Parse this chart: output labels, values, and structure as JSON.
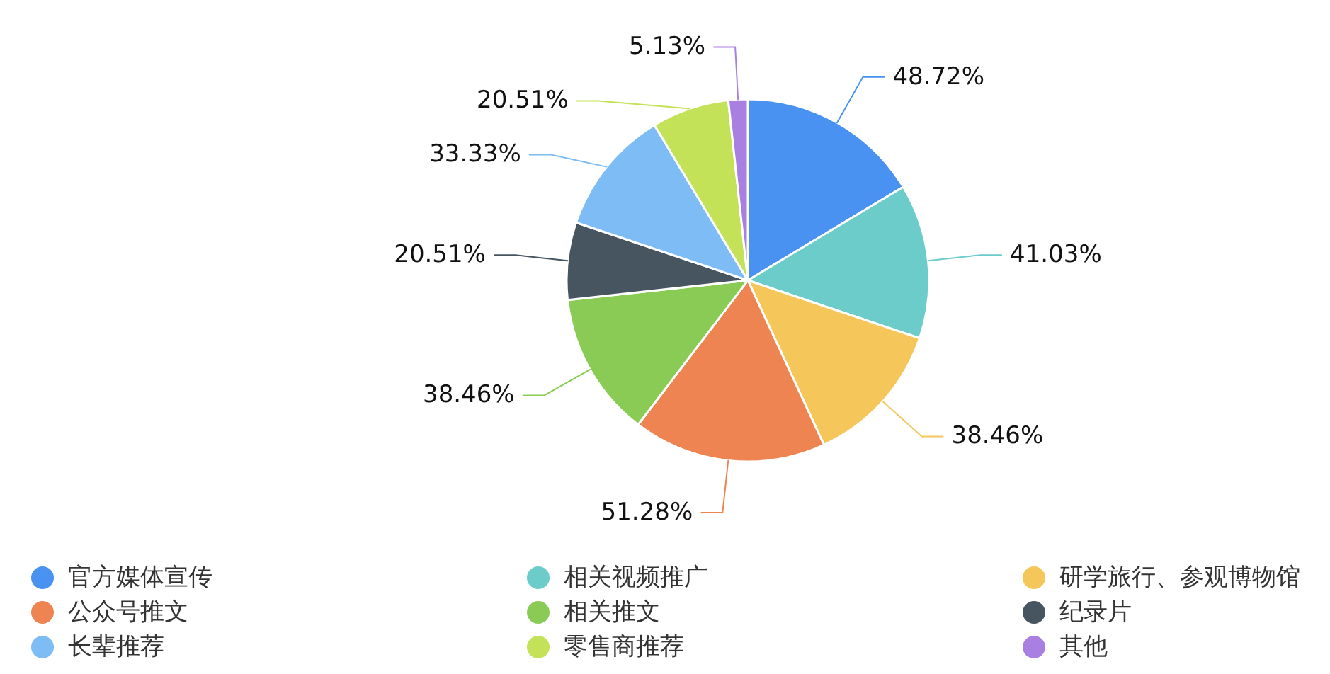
{
  "chart_data": {
    "type": "pie",
    "categories": [
      "官方媒体宣传",
      "相关视频推广",
      "研学旅行、参观博物馆",
      "公众号推文",
      "相关推文",
      "纪录片",
      "长辈推荐",
      "零售商推荐",
      "其他"
    ],
    "values": [
      48.72,
      41.03,
      38.46,
      51.28,
      38.46,
      20.51,
      33.33,
      20.51,
      5.13
    ],
    "value_labels": [
      "48.72%",
      "41.03%",
      "38.46%",
      "51.28%",
      "38.46%",
      "20.51%",
      "33.33%",
      "20.51%",
      "5.13%"
    ],
    "colors": [
      "#4a92f1",
      "#6bccc9",
      "#f5c65a",
      "#ee8452",
      "#89cb55",
      "#475561",
      "#7ebcf5",
      "#c3e257",
      "#a980e2"
    ],
    "legend": "bottom"
  }
}
